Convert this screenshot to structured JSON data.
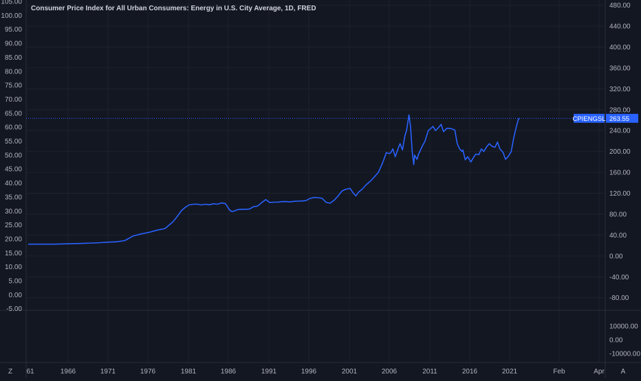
{
  "chart_data": {
    "type": "line",
    "title": "Consumer Price Index for All Urban Consumers: Energy in U.S. City Average, 1D, FRED",
    "series": [
      {
        "name": "CPIENGSL",
        "color": "#2962ff",
        "last_value_label": "263.55",
        "x": [
          1961,
          1962,
          1963,
          1964,
          1965,
          1966,
          1967,
          1968,
          1969,
          1970,
          1971,
          1972,
          1973,
          1974,
          1975,
          1976,
          1977,
          1978,
          1979,
          1979.5,
          1980,
          1980.5,
          1981,
          1981.5,
          1982,
          1982.5,
          1983,
          1983.5,
          1984,
          1984.5,
          1985,
          1985.5,
          1986,
          1986.3,
          1986.7,
          1987,
          1987.5,
          1988,
          1988.5,
          1989,
          1989.5,
          1990,
          1990.5,
          1991,
          1991.5,
          1992,
          1992.5,
          1993,
          1993.5,
          1994,
          1994.5,
          1995,
          1995.5,
          1996,
          1996.5,
          1997,
          1997.5,
          1998,
          1998.5,
          1999,
          1999.5,
          2000,
          2000.5,
          2001,
          2001.3,
          2001.7,
          2002,
          2002.5,
          2003,
          2003.5,
          2004,
          2004.5,
          2005,
          2005.5,
          2005.8,
          2006,
          2006.3,
          2006.6,
          2007,
          2007.2,
          2007.5,
          2007.8,
          2008,
          2008.3,
          2008.5,
          2008.7,
          2008.9,
          2009,
          2009.3,
          2009.5,
          2009.8,
          2010,
          2010.3,
          2010.7,
          2011,
          2011.3,
          2011.6,
          2012,
          2012.3,
          2012.6,
          2013,
          2013.5,
          2014,
          2014.3,
          2014.6,
          2014.9,
          2015,
          2015.3,
          2015.6,
          2016,
          2016.3,
          2016.6,
          2017,
          2017.3,
          2017.6,
          2018,
          2018.3,
          2018.6,
          2019,
          2019.3,
          2019.6,
          2020,
          2020.3,
          2020.6,
          2021,
          2021.3,
          2021.6,
          2021.9,
          2022.05
        ],
        "y": [
          22.5,
          22.5,
          22.6,
          22.5,
          22.9,
          23.3,
          23.8,
          24.2,
          24.8,
          25.5,
          26.5,
          27.2,
          29.4,
          38.1,
          42.1,
          45.1,
          49.4,
          52.5,
          65.7,
          75.2,
          86.0,
          93.0,
          97.7,
          99.0,
          99.2,
          97.7,
          99.0,
          98.0,
          100.0,
          99.0,
          101.6,
          100.5,
          88.2,
          85.0,
          86.5,
          88.6,
          89.5,
          89.3,
          90.0,
          94.3,
          95.5,
          102.1,
          108.0,
          102.5,
          103.0,
          103.0,
          104.0,
          104.2,
          103.5,
          104.6,
          105.0,
          105.2,
          106.0,
          110.1,
          112.0,
          111.5,
          110.5,
          102.9,
          101.0,
          106.6,
          115.0,
          124.6,
          128.0,
          129.3,
          122.0,
          115.0,
          121.7,
          128.0,
          136.5,
          143.0,
          151.4,
          160.0,
          177.1,
          198.0,
          196.0,
          196.9,
          205.0,
          190.0,
          207.7,
          215.0,
          203.0,
          230.0,
          240.0,
          270.0,
          248.0,
          200.0,
          175.0,
          193.1,
          185.0,
          195.0,
          205.0,
          211.4,
          220.0,
          240.0,
          243.9,
          248.0,
          240.0,
          246.1,
          252.0,
          238.0,
          244.4,
          244.0,
          241.2,
          215.0,
          205.0,
          200.0,
          202.9,
          184.0,
          190.0,
          180.0,
          188.0,
          195.0,
          194.2,
          205.0,
          200.0,
          210.0,
          215.0,
          210.0,
          208.0,
          218.0,
          205.0,
          198.0,
          185.0,
          190.0,
          199.5,
          225.0,
          245.0,
          262.0,
          263.55
        ]
      }
    ],
    "x_ticks": [
      "61",
      "1966",
      "1971",
      "1976",
      "1981",
      "1986",
      "1991",
      "1996",
      "2001",
      "2006",
      "2011",
      "2016",
      "2021",
      "Feb",
      "Apr"
    ],
    "left_axis_ticks": [
      "105.00",
      "100.00",
      "95.00",
      "90.00",
      "85.00",
      "80.00",
      "75.00",
      "70.00",
      "65.00",
      "60.00",
      "55.00",
      "50.00",
      "45.00",
      "40.00",
      "35.00",
      "30.00",
      "25.00",
      "20.00",
      "15.00",
      "10.00",
      "5.00",
      "0.00",
      "-5.00"
    ],
    "right_axis_ticks": [
      "480.00",
      "440.00",
      "400.00",
      "360.00",
      "320.00",
      "280.00",
      "240.00",
      "200.00",
      "160.00",
      "120.00",
      "80.00",
      "40.00",
      "0.00",
      "-40.00",
      "-80.00"
    ],
    "lower_pane_ticks": [
      "10000.00",
      "0.00",
      "-10000.00"
    ],
    "ylim_right": [
      -104,
      490
    ],
    "grid": true,
    "bottom_left_button": "Z",
    "bottom_right_button": "A"
  }
}
